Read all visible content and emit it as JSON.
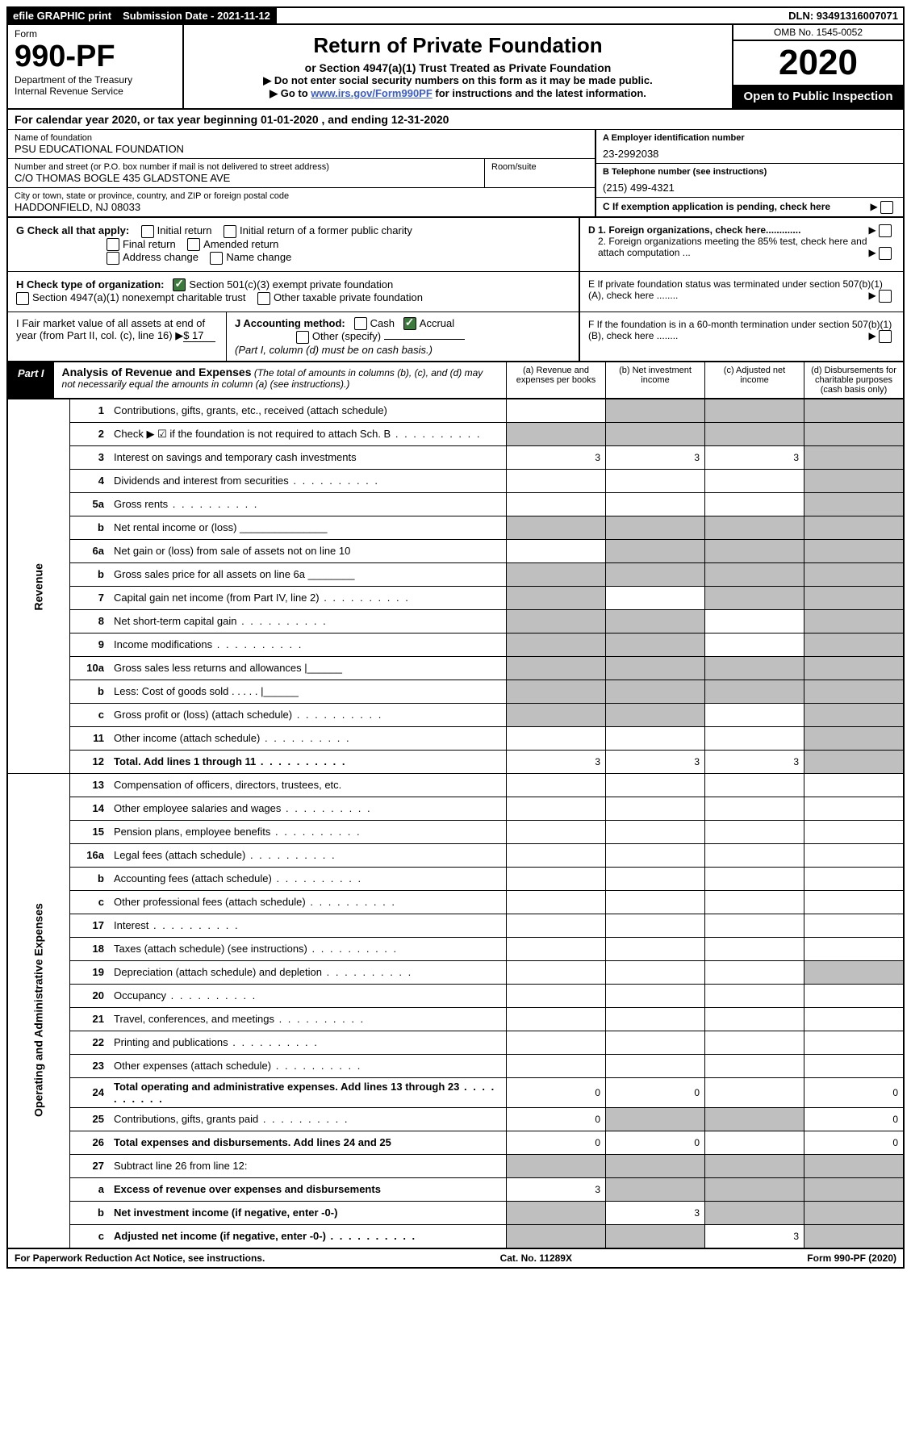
{
  "topbar": {
    "efile": "efile GRAPHIC print",
    "sub_label": "Submission Date - 2021-11-12",
    "dln": "DLN: 93491316007071"
  },
  "header": {
    "form": "Form",
    "num": "990-PF",
    "dept": "Department of the Treasury\nInternal Revenue Service",
    "title": "Return of Private Foundation",
    "sub": "or Section 4947(a)(1) Trust Treated as Private Foundation",
    "note1": "▶ Do not enter social security numbers on this form as it may be made public.",
    "note2_pre": "▶ Go to ",
    "note2_link": "www.irs.gov/Form990PF",
    "note2_post": " for instructions and the latest information.",
    "omb": "OMB No. 1545-0052",
    "year": "2020",
    "open": "Open to Public Inspection"
  },
  "cal": "For calendar year 2020, or tax year beginning 01-01-2020                         , and ending 12-31-2020",
  "ident": {
    "name_lbl": "Name of foundation",
    "name": "PSU EDUCATIONAL FOUNDATION",
    "addr_lbl": "Number and street (or P.O. box number if mail is not delivered to street address)",
    "addr": "C/O THOMAS BOGLE 435 GLADSTONE AVE",
    "room_lbl": "Room/suite",
    "city_lbl": "City or town, state or province, country, and ZIP or foreign postal code",
    "city": "HADDONFIELD, NJ  08033",
    "a_lbl": "A Employer identification number",
    "a": "23-2992038",
    "b_lbl": "B Telephone number (see instructions)",
    "b": "(215) 499-4321",
    "c": "C If exemption application is pending, check here",
    "d1": "D 1. Foreign organizations, check here.............",
    "d2": "2. Foreign organizations meeting the 85% test, check here and attach computation ...",
    "e": "E  If private foundation status was terminated under section 507(b)(1)(A), check here ........",
    "f": "F  If the foundation is in a 60-month termination under section 507(b)(1)(B), check here ........"
  },
  "checks": {
    "g_lbl": "G Check all that apply:",
    "g1": "Initial return",
    "g2": "Initial return of a former public charity",
    "g3": "Final return",
    "g4": "Amended return",
    "g5": "Address change",
    "g6": "Name change",
    "h_lbl": "H Check type of organization:",
    "h1": "Section 501(c)(3) exempt private foundation",
    "h2": "Section 4947(a)(1) nonexempt charitable trust",
    "h3": "Other taxable private foundation",
    "i_lbl": "I Fair market value of all assets at end of year (from Part II, col. (c), line 16)",
    "i_val": "$  17",
    "j_lbl": "J Accounting method:",
    "j1": "Cash",
    "j2": "Accrual",
    "j3": "Other (specify)",
    "j_note": "(Part I, column (d) must be on cash basis.)"
  },
  "part1": {
    "lab": "Part I",
    "title": "Analysis of Revenue and Expenses",
    "note": " (The total of amounts in columns (b), (c), and (d) may not necessarily equal the amounts in column (a) (see instructions).)",
    "col_a": "(a)   Revenue and expenses per books",
    "col_b": "(b)  Net investment income",
    "col_c": "(c)  Adjusted net income",
    "col_d": "(d)  Disbursements for charitable purposes (cash basis only)"
  },
  "sides": {
    "rev": "Revenue",
    "exp": "Operating and Administrative Expenses"
  },
  "rows": [
    {
      "n": "1",
      "t": "Contributions, gifts, grants, etc., received (attach schedule)",
      "a": "",
      "b": "grey",
      "c": "grey",
      "d": "grey"
    },
    {
      "n": "2",
      "t": "Check ▶ ☑ if the foundation is not required to attach Sch. B",
      "dotted": true,
      "a": "grey",
      "b": "grey",
      "c": "grey",
      "d": "grey"
    },
    {
      "n": "3",
      "t": "Interest on savings and temporary cash investments",
      "a": "3",
      "b": "3",
      "c": "3",
      "d": "grey"
    },
    {
      "n": "4",
      "t": "Dividends and interest from securities",
      "dotted": true,
      "a": "",
      "b": "",
      "c": "",
      "d": "grey"
    },
    {
      "n": "5a",
      "t": "Gross rents",
      "dotted": true,
      "a": "",
      "b": "",
      "c": "",
      "d": "grey"
    },
    {
      "n": "b",
      "t": "Net rental income or (loss)  _______________",
      "a": "grey",
      "b": "grey",
      "c": "grey",
      "d": "grey"
    },
    {
      "n": "6a",
      "t": "Net gain or (loss) from sale of assets not on line 10",
      "a": "",
      "b": "grey",
      "c": "grey",
      "d": "grey"
    },
    {
      "n": "b",
      "t": "Gross sales price for all assets on line 6a ________",
      "a": "grey",
      "b": "grey",
      "c": "grey",
      "d": "grey"
    },
    {
      "n": "7",
      "t": "Capital gain net income (from Part IV, line 2)",
      "dotted": true,
      "a": "grey",
      "b": "",
      "c": "grey",
      "d": "grey"
    },
    {
      "n": "8",
      "t": "Net short-term capital gain",
      "dotted": true,
      "a": "grey",
      "b": "grey",
      "c": "",
      "d": "grey"
    },
    {
      "n": "9",
      "t": "Income modifications",
      "dotted": true,
      "a": "grey",
      "b": "grey",
      "c": "",
      "d": "grey"
    },
    {
      "n": "10a",
      "t": "Gross sales less returns and allowances   |______",
      "a": "grey",
      "b": "grey",
      "c": "grey",
      "d": "grey"
    },
    {
      "n": "b",
      "t": "Less: Cost of goods sold   . . . . .   |______",
      "a": "grey",
      "b": "grey",
      "c": "grey",
      "d": "grey"
    },
    {
      "n": "c",
      "t": "Gross profit or (loss) (attach schedule)",
      "dotted": true,
      "a": "grey",
      "b": "grey",
      "c": "",
      "d": "grey"
    },
    {
      "n": "11",
      "t": "Other income (attach schedule)",
      "dotted": true,
      "a": "",
      "b": "",
      "c": "",
      "d": "grey"
    },
    {
      "n": "12",
      "t": "Total. Add lines 1 through 11",
      "bold": true,
      "dotted": true,
      "a": "3",
      "b": "3",
      "c": "3",
      "d": "grey"
    },
    {
      "n": "13",
      "t": "Compensation of officers, directors, trustees, etc.",
      "a": "",
      "b": "",
      "c": "",
      "d": ""
    },
    {
      "n": "14",
      "t": "Other employee salaries and wages",
      "dotted": true,
      "a": "",
      "b": "",
      "c": "",
      "d": ""
    },
    {
      "n": "15",
      "t": "Pension plans, employee benefits",
      "dotted": true,
      "a": "",
      "b": "",
      "c": "",
      "d": ""
    },
    {
      "n": "16a",
      "t": "Legal fees (attach schedule)",
      "dotted": true,
      "a": "",
      "b": "",
      "c": "",
      "d": ""
    },
    {
      "n": "b",
      "t": "Accounting fees (attach schedule)",
      "dotted": true,
      "a": "",
      "b": "",
      "c": "",
      "d": ""
    },
    {
      "n": "c",
      "t": "Other professional fees (attach schedule)",
      "dotted": true,
      "a": "",
      "b": "",
      "c": "",
      "d": ""
    },
    {
      "n": "17",
      "t": "Interest",
      "dotted": true,
      "a": "",
      "b": "",
      "c": "",
      "d": ""
    },
    {
      "n": "18",
      "t": "Taxes (attach schedule) (see instructions)",
      "dotted": true,
      "a": "",
      "b": "",
      "c": "",
      "d": ""
    },
    {
      "n": "19",
      "t": "Depreciation (attach schedule) and depletion",
      "dotted": true,
      "a": "",
      "b": "",
      "c": "",
      "d": "grey"
    },
    {
      "n": "20",
      "t": "Occupancy",
      "dotted": true,
      "a": "",
      "b": "",
      "c": "",
      "d": ""
    },
    {
      "n": "21",
      "t": "Travel, conferences, and meetings",
      "dotted": true,
      "a": "",
      "b": "",
      "c": "",
      "d": ""
    },
    {
      "n": "22",
      "t": "Printing and publications",
      "dotted": true,
      "a": "",
      "b": "",
      "c": "",
      "d": ""
    },
    {
      "n": "23",
      "t": "Other expenses (attach schedule)",
      "dotted": true,
      "a": "",
      "b": "",
      "c": "",
      "d": ""
    },
    {
      "n": "24",
      "t": "Total operating and administrative expenses. Add lines 13 through 23",
      "bold": true,
      "dotted": true,
      "a": "0",
      "b": "0",
      "c": "",
      "d": "0"
    },
    {
      "n": "25",
      "t": "Contributions, gifts, grants paid",
      "dotted": true,
      "a": "0",
      "b": "grey",
      "c": "grey",
      "d": "0"
    },
    {
      "n": "26",
      "t": "Total expenses and disbursements. Add lines 24 and 25",
      "bold": true,
      "a": "0",
      "b": "0",
      "c": "",
      "d": "0"
    },
    {
      "n": "27",
      "t": "Subtract line 26 from line 12:",
      "a": "grey",
      "b": "grey",
      "c": "grey",
      "d": "grey"
    },
    {
      "n": "a",
      "t": "Excess of revenue over expenses and disbursements",
      "bold": true,
      "a": "3",
      "b": "grey",
      "c": "grey",
      "d": "grey"
    },
    {
      "n": "b",
      "t": "Net investment income (if negative, enter -0-)",
      "bold": true,
      "a": "grey",
      "b": "3",
      "c": "grey",
      "d": "grey"
    },
    {
      "n": "c",
      "t": "Adjusted net income (if negative, enter -0-)",
      "bold": true,
      "dotted": true,
      "a": "grey",
      "b": "grey",
      "c": "3",
      "d": "grey"
    }
  ],
  "footer": {
    "l": "For Paperwork Reduction Act Notice, see instructions.",
    "m": "Cat. No. 11289X",
    "r": "Form 990-PF (2020)"
  },
  "colors": {
    "grey": "#bfbfbf",
    "link": "#3a5bcd",
    "green": "#3a7a3a"
  }
}
